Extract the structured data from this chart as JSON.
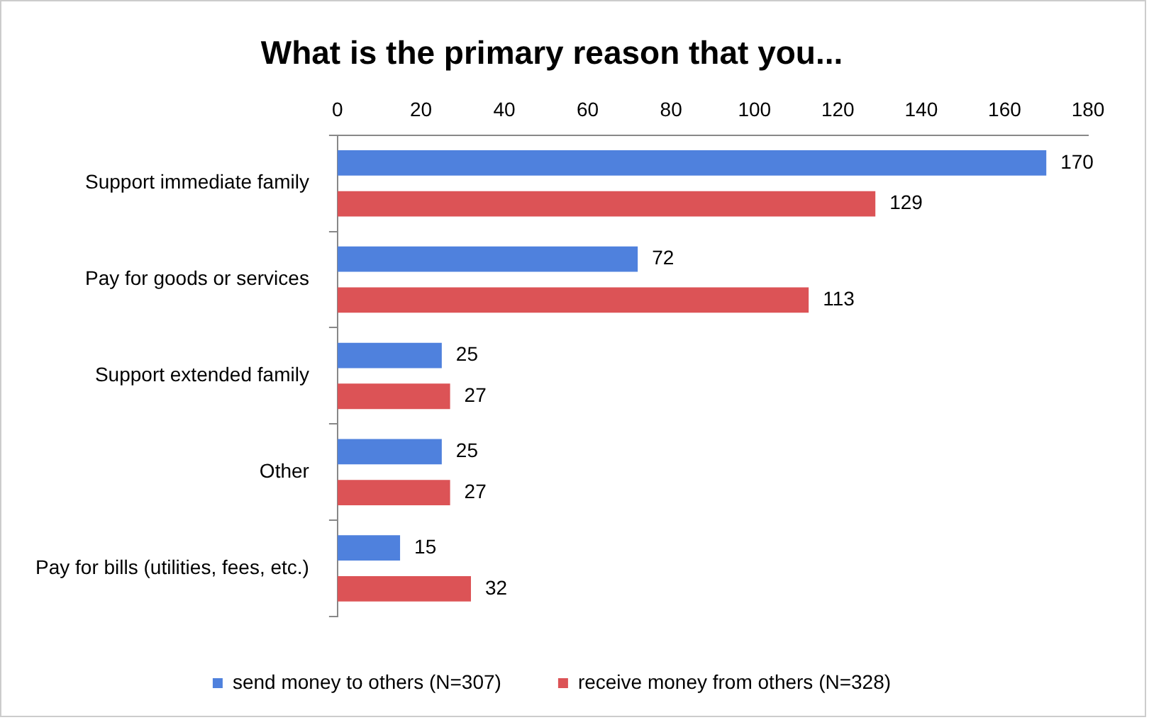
{
  "chart_data": {
    "type": "bar",
    "orientation": "horizontal",
    "title": "What is the primary reason that you...",
    "categories": [
      "Support immediate family",
      "Pay for goods or services",
      "Support extended family",
      "Other",
      "Pay for bills (utilities, fees, etc.)"
    ],
    "series": [
      {
        "name": "send money to others (N=307)",
        "color": "#4f81dd",
        "values": [
          170,
          72,
          25,
          25,
          15
        ]
      },
      {
        "name": "receive money from others (N=328)",
        "color": "#dc5356",
        "values": [
          129,
          113,
          27,
          27,
          32
        ]
      }
    ],
    "xlim": [
      0,
      180
    ],
    "xticks": [
      0,
      20,
      40,
      60,
      80,
      100,
      120,
      140,
      160,
      180
    ],
    "grid": false,
    "legend": "bottom",
    "data_labels": true
  }
}
